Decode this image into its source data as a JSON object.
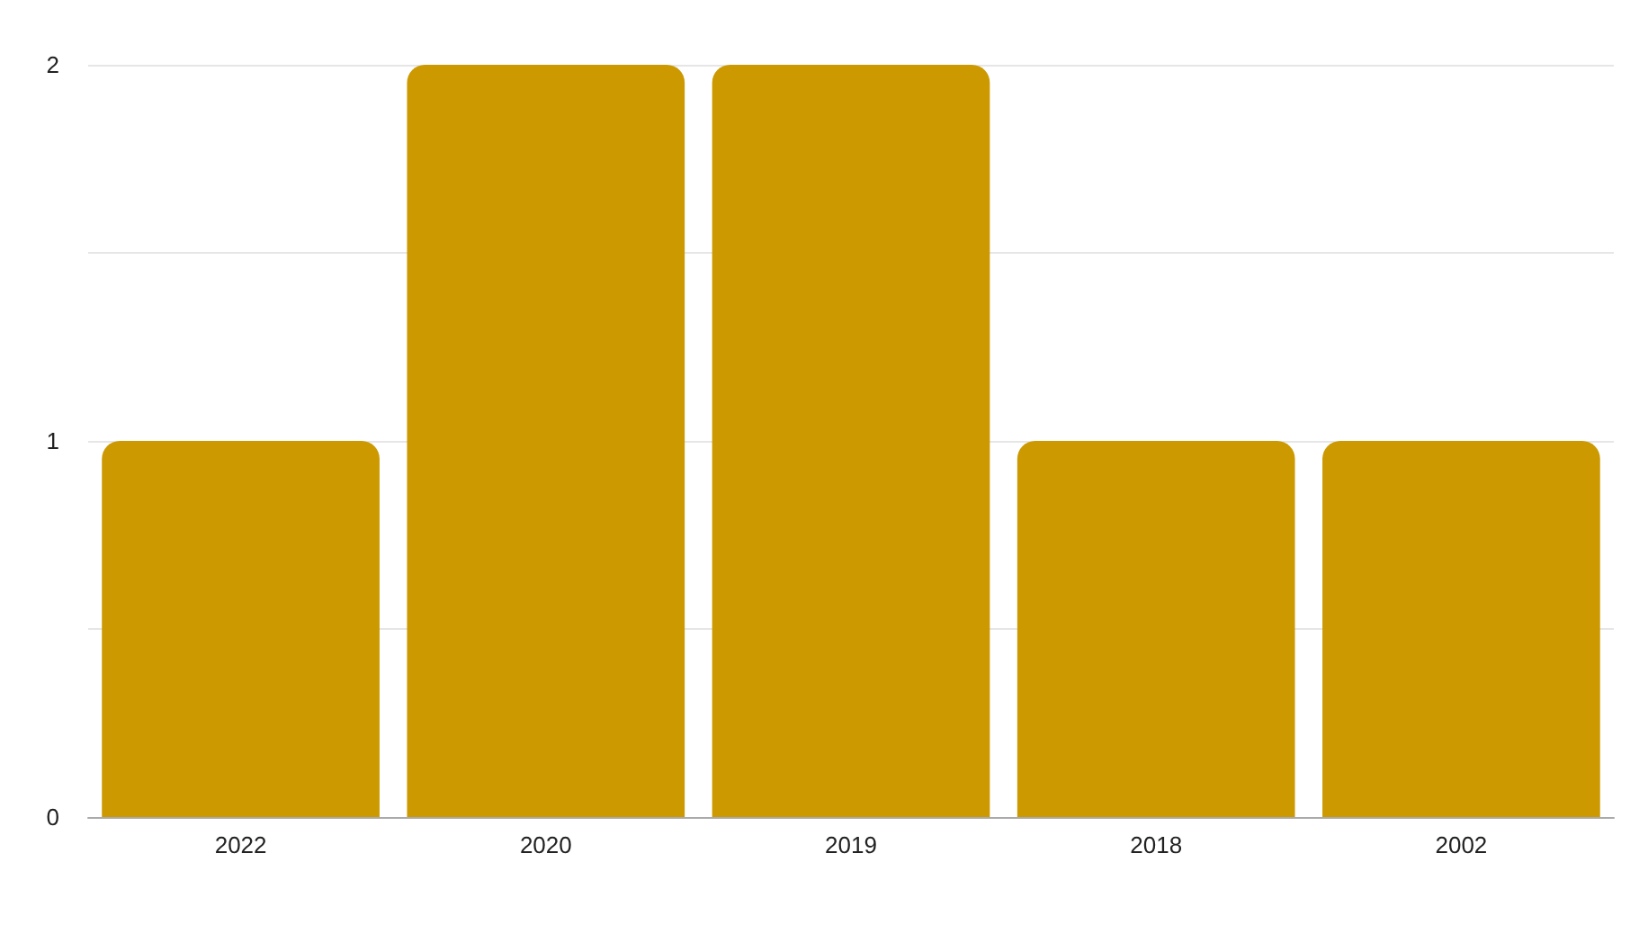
{
  "chart_data": {
    "type": "bar",
    "categories": [
      "2022",
      "2020",
      "2019",
      "2018",
      "2002"
    ],
    "values": [
      1,
      2,
      2,
      1,
      1
    ],
    "color": "#cc9900",
    "ylim": [
      0,
      2
    ],
    "yticks": [
      0,
      {
        "value": 0.5,
        "label": null
      },
      1,
      {
        "value": 1.5,
        "label": null
      },
      2
    ],
    "grid": "y"
  }
}
